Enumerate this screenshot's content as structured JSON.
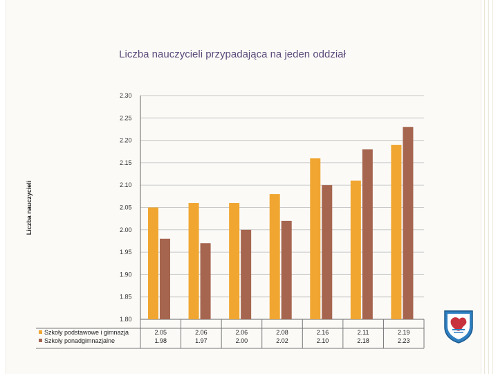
{
  "title": "Liczba nauczycieli przypadająca na jeden oddział",
  "colors": {
    "series_1": "#f0a630",
    "series_2": "#a6654f",
    "grid": "#c8c8c8",
    "title": "#5b4a7a"
  },
  "chart_data": {
    "type": "bar",
    "title": "",
    "xlabel": "",
    "ylabel": "Liczba nauczycieli",
    "ylim": [
      1.8,
      2.3
    ],
    "yticks": [
      "2.30",
      "2.25",
      "2.20",
      "2.15",
      "2.10",
      "2.05",
      "2.00",
      "1.95",
      "1.90",
      "1.85",
      "1.80"
    ],
    "grid": true,
    "legend": "table-left",
    "categories": [
      "",
      "",
      "",
      "",
      "",
      "",
      ""
    ],
    "series": [
      {
        "name": "Szkoły podstawowe i gimnazja",
        "values": [
          2.05,
          2.06,
          2.06,
          2.08,
          2.16,
          2.11,
          2.19
        ],
        "labels": [
          "2.05",
          "2.06",
          "2.06",
          "2.08",
          "2.16",
          "2.11",
          "2.19"
        ]
      },
      {
        "name": "Szkoły ponadgimnazjalne",
        "values": [
          1.98,
          1.97,
          2.0,
          2.02,
          2.1,
          2.18,
          2.23
        ],
        "labels": [
          "1.98",
          "1.97",
          "2.00",
          "2.02",
          "2.10",
          "2.18",
          "2.23"
        ]
      }
    ]
  },
  "icons": {
    "crest": "coat-of-arms-icon"
  }
}
